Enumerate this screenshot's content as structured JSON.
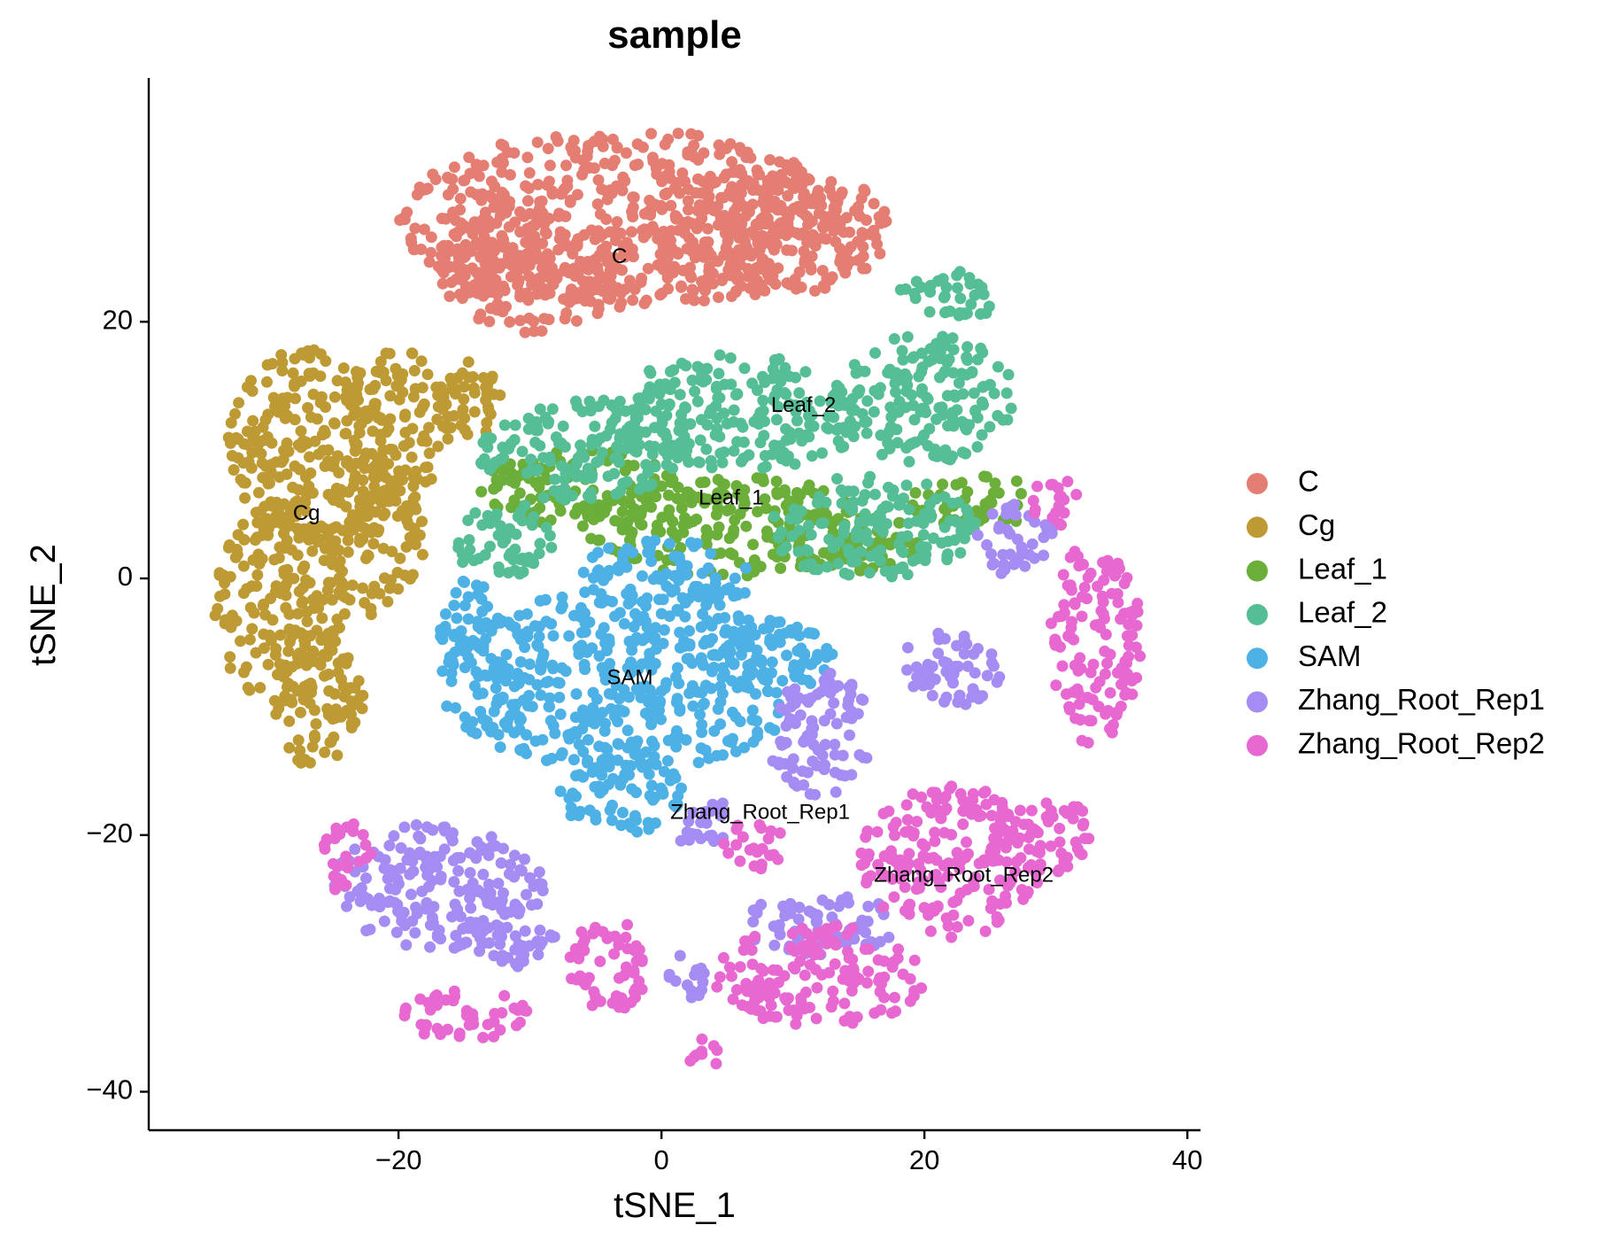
{
  "chart_data": {
    "type": "scatter",
    "title": "sample",
    "xlabel": "tSNE_1",
    "ylabel": "tSNE_2",
    "xlim": [
      -39,
      41
    ],
    "ylim": [
      -43,
      39
    ],
    "x_ticks": [
      -20,
      0,
      20,
      40
    ],
    "y_ticks": [
      20,
      0,
      -20,
      -40
    ],
    "x_tick_labels": [
      "−20",
      "0",
      "20",
      "40"
    ],
    "y_tick_labels": [
      "20",
      "0",
      "−20",
      "−40"
    ],
    "grid": false,
    "legend_position": "right",
    "series": [
      {
        "name": "C",
        "color": "#E57E72",
        "blobs": [
          {
            "cx": -3,
            "cy": 28,
            "rx": 17,
            "ry": 7
          },
          {
            "cx": -10,
            "cy": 24,
            "rx": 7,
            "ry": 5
          },
          {
            "cx": 8,
            "cy": 27,
            "rx": 10,
            "ry": 5
          }
        ]
      },
      {
        "name": "Cg",
        "color": "#BE9A34",
        "blobs": [
          {
            "cx": -27,
            "cy": 10,
            "rx": 6,
            "ry": 8
          },
          {
            "cx": -29,
            "cy": -2,
            "rx": 5,
            "ry": 8
          },
          {
            "cx": -26,
            "cy": -10,
            "rx": 3.5,
            "ry": 5
          },
          {
            "cx": -20,
            "cy": 12,
            "rx": 4,
            "ry": 6
          },
          {
            "cx": -15,
            "cy": 14,
            "rx": 3.5,
            "ry": 3
          },
          {
            "cx": -22,
            "cy": 3,
            "rx": 4,
            "ry": 6
          }
        ]
      },
      {
        "name": "Leaf_1",
        "color": "#6BAE3A",
        "blobs": [
          {
            "cx": 5,
            "cy": 4,
            "rx": 11,
            "ry": 4
          },
          {
            "cx": -6,
            "cy": 7,
            "rx": 8,
            "ry": 3
          },
          {
            "cx": 24,
            "cy": 6,
            "rx": 5,
            "ry": 2
          },
          {
            "cx": 14,
            "cy": 3,
            "rx": 6,
            "ry": 2.5
          }
        ]
      },
      {
        "name": "Leaf_2",
        "color": "#55BE95",
        "blobs": [
          {
            "cx": 6,
            "cy": 13,
            "rx": 10,
            "ry": 4.5
          },
          {
            "cx": -6,
            "cy": 10,
            "rx": 8,
            "ry": 4
          },
          {
            "cx": 20,
            "cy": 14,
            "rx": 7,
            "ry": 5
          },
          {
            "cx": 22,
            "cy": 22,
            "rx": 4,
            "ry": 2
          },
          {
            "cx": 16,
            "cy": 4,
            "rx": 8,
            "ry": 4
          },
          {
            "cx": -12,
            "cy": 3,
            "rx": 4,
            "ry": 3
          }
        ]
      },
      {
        "name": "SAM",
        "color": "#4EB1E5",
        "blobs": [
          {
            "cx": -3,
            "cy": -8,
            "rx": 14,
            "ry": 7
          },
          {
            "cx": -3,
            "cy": -17,
            "rx": 5,
            "ry": 3
          },
          {
            "cx": 0,
            "cy": 0,
            "rx": 7,
            "ry": 3
          },
          {
            "cx": 8,
            "cy": -6,
            "rx": 5,
            "ry": 3
          },
          {
            "cx": -15,
            "cy": -3,
            "rx": 2.5,
            "ry": 3
          }
        ]
      },
      {
        "name": "Zhang_Root_Rep1",
        "color": "#A48CF2",
        "blobs": [
          {
            "cx": -17,
            "cy": -24,
            "rx": 8,
            "ry": 5
          },
          {
            "cx": -12,
            "cy": -28,
            "rx": 4,
            "ry": 2.5
          },
          {
            "cx": 12,
            "cy": -12,
            "rx": 4,
            "ry": 5
          },
          {
            "cx": 22,
            "cy": -7,
            "rx": 4,
            "ry": 3
          },
          {
            "cx": 12,
            "cy": -27,
            "rx": 6,
            "ry": 2.5
          },
          {
            "cx": 27,
            "cy": 3,
            "rx": 3,
            "ry": 3
          },
          {
            "cx": 3,
            "cy": -19,
            "rx": 2.5,
            "ry": 2
          },
          {
            "cx": 2,
            "cy": -31,
            "rx": 1.5,
            "ry": 2
          }
        ]
      },
      {
        "name": "Zhang_Root_Rep2",
        "color": "#E868D2",
        "blobs": [
          {
            "cx": 33,
            "cy": -5,
            "rx": 3.5,
            "ry": 8
          },
          {
            "cx": 22,
            "cy": -22,
            "rx": 7,
            "ry": 6
          },
          {
            "cx": 12,
            "cy": -31,
            "rx": 8,
            "ry": 4
          },
          {
            "cx": 29,
            "cy": -20,
            "rx": 4,
            "ry": 3
          },
          {
            "cx": -15,
            "cy": -34,
            "rx": 5,
            "ry": 2
          },
          {
            "cx": -4,
            "cy": -30,
            "rx": 3,
            "ry": 4
          },
          {
            "cx": 3,
            "cy": -37,
            "rx": 1.5,
            "ry": 1.3
          },
          {
            "cx": 30,
            "cy": 6,
            "rx": 2,
            "ry": 2
          },
          {
            "cx": 7,
            "cy": -21,
            "rx": 2.5,
            "ry": 2
          },
          {
            "cx": -24,
            "cy": -22,
            "rx": 2,
            "ry": 3
          }
        ]
      }
    ],
    "cluster_labels": [
      {
        "text": "C",
        "x": -3.2,
        "y": 25
      },
      {
        "text": "Cg",
        "x": -27,
        "y": 5
      },
      {
        "text": "Leaf_2",
        "x": 10.8,
        "y": 13.4
      },
      {
        "text": "Leaf_1",
        "x": 5.3,
        "y": 6.2
      },
      {
        "text": "SAM",
        "x": -2.4,
        "y": -7.8
      },
      {
        "text": "Zhang_Root_Rep1",
        "x": 7.5,
        "y": -18.3
      },
      {
        "text": "Zhang_Root_Rep2",
        "x": 23,
        "y": -23.2
      }
    ]
  }
}
